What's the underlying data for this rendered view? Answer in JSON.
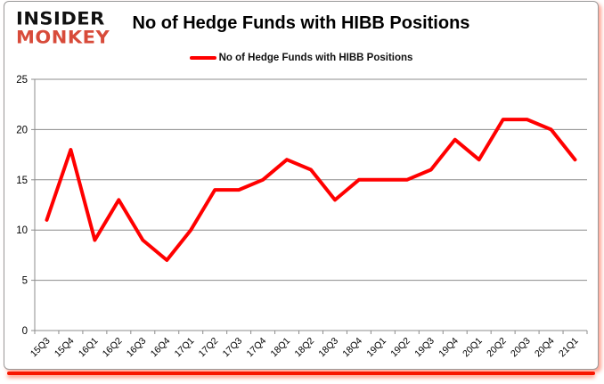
{
  "logo": {
    "line1": "INSIDER",
    "line2": "MONKEY"
  },
  "header": {
    "title": "No of Hedge Funds with HIBB Positions"
  },
  "legend": {
    "label": "No of Hedge Funds with HIBB Positions"
  },
  "colors": {
    "series": "#ff0000",
    "logo_text": "#111111",
    "logo_accent": "#d84b3a",
    "grid": "#8c8c8c",
    "axis": "#8c8c8c",
    "frame_border": "#9a9a9a",
    "bottom_bar": "#f81600",
    "tick_text": "#000000"
  },
  "chart_data": {
    "type": "line",
    "title": "No of Hedge Funds with HIBB Positions",
    "categories": [
      "15Q3",
      "15Q4",
      "16Q1",
      "16Q2",
      "16Q3",
      "16Q4",
      "17Q1",
      "17Q2",
      "17Q3",
      "17Q4",
      "18Q1",
      "18Q2",
      "18Q3",
      "18Q4",
      "19Q1",
      "19Q2",
      "19Q3",
      "19Q4",
      "20Q1",
      "20Q2",
      "20Q3",
      "20Q4",
      "21Q1"
    ],
    "series": [
      {
        "name": "No of Hedge Funds with HIBB Positions",
        "color": "#ff0000",
        "values": [
          11,
          18,
          9,
          13,
          9,
          7,
          10,
          14,
          14,
          15,
          17,
          16,
          13,
          15,
          15,
          15,
          16,
          19,
          17,
          21,
          21,
          20,
          17
        ]
      }
    ],
    "xlabel": "",
    "ylabel": "",
    "ylim": [
      0,
      25
    ],
    "yticks": [
      0,
      5,
      10,
      15,
      20,
      25
    ],
    "grid": true,
    "legend_position": "top"
  }
}
